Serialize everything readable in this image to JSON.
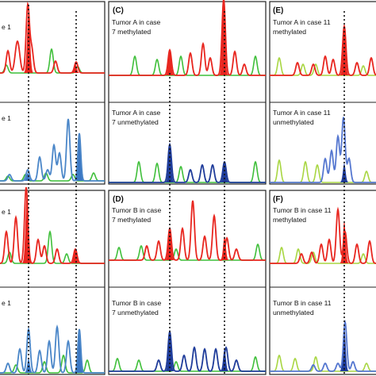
{
  "panels": [
    {
      "id": "A-top",
      "letter": "",
      "lines": [
        "e 1"
      ],
      "color": "#e8261f",
      "fill": "#e8261f",
      "green": "#3fbf3a"
    },
    {
      "id": "A-bottom",
      "letter": "",
      "lines": [
        "e 1"
      ],
      "color": "#4a86c8",
      "fill": "#3b78c4",
      "green": "#3fbf3a"
    },
    {
      "id": "B-top",
      "letter": "",
      "lines": [
        "e 1"
      ],
      "color": "#e8261f",
      "fill": "#e8261f",
      "green": "#3fbf3a"
    },
    {
      "id": "B-bottom",
      "letter": "",
      "lines": [
        "e 1"
      ],
      "color": "#4a86c8",
      "fill": "#3b78c4",
      "green": "#3fbf3a"
    },
    {
      "id": "C",
      "letter": "(C)",
      "lines": [
        "Tumor A in case",
        "7 methylated"
      ],
      "color": "#e8261f",
      "fill": "#e8261f",
      "green": "#3fbf3a"
    },
    {
      "id": "C-u",
      "letter": "",
      "lines": [
        "Tumor A in case",
        "7 unmethylated"
      ],
      "color": "#1f3c9a",
      "fill": "#1f3c9a",
      "green": "#3fbf3a"
    },
    {
      "id": "D",
      "letter": "(D)",
      "lines": [
        "Tumor B in case",
        "7 methylated"
      ],
      "color": "#e8261f",
      "fill": "#e8261f",
      "green": "#3fbf3a"
    },
    {
      "id": "D-u",
      "letter": "",
      "lines": [
        "Tumor B in case",
        "7 unmethylated"
      ],
      "color": "#1f3c9a",
      "fill": "#1f3c9a",
      "green": "#3fbf3a"
    },
    {
      "id": "E",
      "letter": "(E)",
      "lines": [
        "Tumor A in case 11",
        "methylated"
      ],
      "color": "#e8261f",
      "fill": "#e8261f",
      "green": "#a8d642"
    },
    {
      "id": "E-u",
      "letter": "",
      "lines": [
        "Tumor A in case 11",
        "unmethylated"
      ],
      "color": "#5577d0",
      "fill": "#1f3c9a",
      "green": "#a8d642"
    },
    {
      "id": "F",
      "letter": "(F)",
      "lines": [
        "Tumor B in case 11",
        "methylated"
      ],
      "color": "#e8261f",
      "fill": "#e8261f",
      "green": "#a8d642"
    },
    {
      "id": "F-u",
      "letter": "",
      "lines": [
        "Tumor B in case 11",
        "unmethylated"
      ],
      "color": "#5577d0",
      "fill": "#1f3c9a",
      "green": "#a8d642"
    }
  ]
}
